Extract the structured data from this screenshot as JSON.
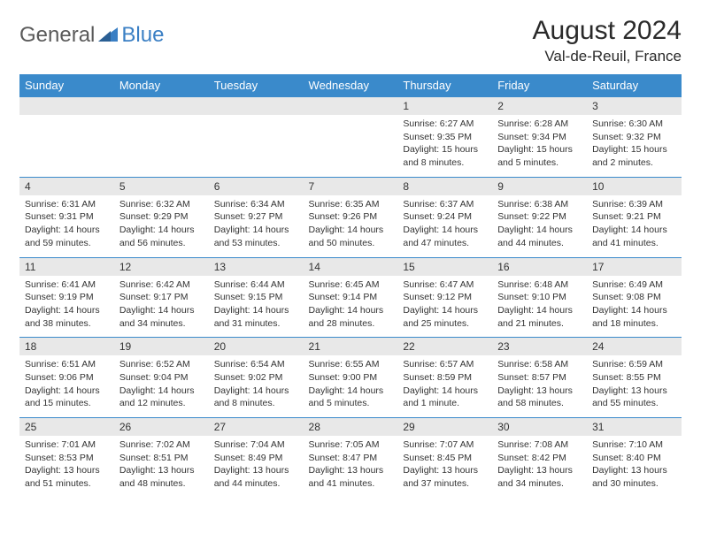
{
  "logo": {
    "part1": "General",
    "part2": "Blue"
  },
  "title": "August 2024",
  "location": "Val-de-Reuil, France",
  "dayHeaders": [
    "Sunday",
    "Monday",
    "Tuesday",
    "Wednesday",
    "Thursday",
    "Friday",
    "Saturday"
  ],
  "colors": {
    "header_bg": "#3a8acb",
    "header_text": "#ffffff",
    "date_bg": "#e8e8e8",
    "cell_bg": "#ffffff",
    "border": "#3a8acb",
    "logo_gray": "#5a5a5a",
    "logo_blue": "#3a7fc4"
  },
  "weeks": [
    {
      "dates": [
        "",
        "",
        "",
        "",
        "1",
        "2",
        "3"
      ],
      "cells": [
        [],
        [],
        [],
        [],
        [
          "Sunrise: 6:27 AM",
          "Sunset: 9:35 PM",
          "Daylight: 15 hours",
          "and 8 minutes."
        ],
        [
          "Sunrise: 6:28 AM",
          "Sunset: 9:34 PM",
          "Daylight: 15 hours",
          "and 5 minutes."
        ],
        [
          "Sunrise: 6:30 AM",
          "Sunset: 9:32 PM",
          "Daylight: 15 hours",
          "and 2 minutes."
        ]
      ]
    },
    {
      "dates": [
        "4",
        "5",
        "6",
        "7",
        "8",
        "9",
        "10"
      ],
      "cells": [
        [
          "Sunrise: 6:31 AM",
          "Sunset: 9:31 PM",
          "Daylight: 14 hours",
          "and 59 minutes."
        ],
        [
          "Sunrise: 6:32 AM",
          "Sunset: 9:29 PM",
          "Daylight: 14 hours",
          "and 56 minutes."
        ],
        [
          "Sunrise: 6:34 AM",
          "Sunset: 9:27 PM",
          "Daylight: 14 hours",
          "and 53 minutes."
        ],
        [
          "Sunrise: 6:35 AM",
          "Sunset: 9:26 PM",
          "Daylight: 14 hours",
          "and 50 minutes."
        ],
        [
          "Sunrise: 6:37 AM",
          "Sunset: 9:24 PM",
          "Daylight: 14 hours",
          "and 47 minutes."
        ],
        [
          "Sunrise: 6:38 AM",
          "Sunset: 9:22 PM",
          "Daylight: 14 hours",
          "and 44 minutes."
        ],
        [
          "Sunrise: 6:39 AM",
          "Sunset: 9:21 PM",
          "Daylight: 14 hours",
          "and 41 minutes."
        ]
      ]
    },
    {
      "dates": [
        "11",
        "12",
        "13",
        "14",
        "15",
        "16",
        "17"
      ],
      "cells": [
        [
          "Sunrise: 6:41 AM",
          "Sunset: 9:19 PM",
          "Daylight: 14 hours",
          "and 38 minutes."
        ],
        [
          "Sunrise: 6:42 AM",
          "Sunset: 9:17 PM",
          "Daylight: 14 hours",
          "and 34 minutes."
        ],
        [
          "Sunrise: 6:44 AM",
          "Sunset: 9:15 PM",
          "Daylight: 14 hours",
          "and 31 minutes."
        ],
        [
          "Sunrise: 6:45 AM",
          "Sunset: 9:14 PM",
          "Daylight: 14 hours",
          "and 28 minutes."
        ],
        [
          "Sunrise: 6:47 AM",
          "Sunset: 9:12 PM",
          "Daylight: 14 hours",
          "and 25 minutes."
        ],
        [
          "Sunrise: 6:48 AM",
          "Sunset: 9:10 PM",
          "Daylight: 14 hours",
          "and 21 minutes."
        ],
        [
          "Sunrise: 6:49 AM",
          "Sunset: 9:08 PM",
          "Daylight: 14 hours",
          "and 18 minutes."
        ]
      ]
    },
    {
      "dates": [
        "18",
        "19",
        "20",
        "21",
        "22",
        "23",
        "24"
      ],
      "cells": [
        [
          "Sunrise: 6:51 AM",
          "Sunset: 9:06 PM",
          "Daylight: 14 hours",
          "and 15 minutes."
        ],
        [
          "Sunrise: 6:52 AM",
          "Sunset: 9:04 PM",
          "Daylight: 14 hours",
          "and 12 minutes."
        ],
        [
          "Sunrise: 6:54 AM",
          "Sunset: 9:02 PM",
          "Daylight: 14 hours",
          "and 8 minutes."
        ],
        [
          "Sunrise: 6:55 AM",
          "Sunset: 9:00 PM",
          "Daylight: 14 hours",
          "and 5 minutes."
        ],
        [
          "Sunrise: 6:57 AM",
          "Sunset: 8:59 PM",
          "Daylight: 14 hours",
          "and 1 minute."
        ],
        [
          "Sunrise: 6:58 AM",
          "Sunset: 8:57 PM",
          "Daylight: 13 hours",
          "and 58 minutes."
        ],
        [
          "Sunrise: 6:59 AM",
          "Sunset: 8:55 PM",
          "Daylight: 13 hours",
          "and 55 minutes."
        ]
      ]
    },
    {
      "dates": [
        "25",
        "26",
        "27",
        "28",
        "29",
        "30",
        "31"
      ],
      "cells": [
        [
          "Sunrise: 7:01 AM",
          "Sunset: 8:53 PM",
          "Daylight: 13 hours",
          "and 51 minutes."
        ],
        [
          "Sunrise: 7:02 AM",
          "Sunset: 8:51 PM",
          "Daylight: 13 hours",
          "and 48 minutes."
        ],
        [
          "Sunrise: 7:04 AM",
          "Sunset: 8:49 PM",
          "Daylight: 13 hours",
          "and 44 minutes."
        ],
        [
          "Sunrise: 7:05 AM",
          "Sunset: 8:47 PM",
          "Daylight: 13 hours",
          "and 41 minutes."
        ],
        [
          "Sunrise: 7:07 AM",
          "Sunset: 8:45 PM",
          "Daylight: 13 hours",
          "and 37 minutes."
        ],
        [
          "Sunrise: 7:08 AM",
          "Sunset: 8:42 PM",
          "Daylight: 13 hours",
          "and 34 minutes."
        ],
        [
          "Sunrise: 7:10 AM",
          "Sunset: 8:40 PM",
          "Daylight: 13 hours",
          "and 30 minutes."
        ]
      ]
    }
  ]
}
